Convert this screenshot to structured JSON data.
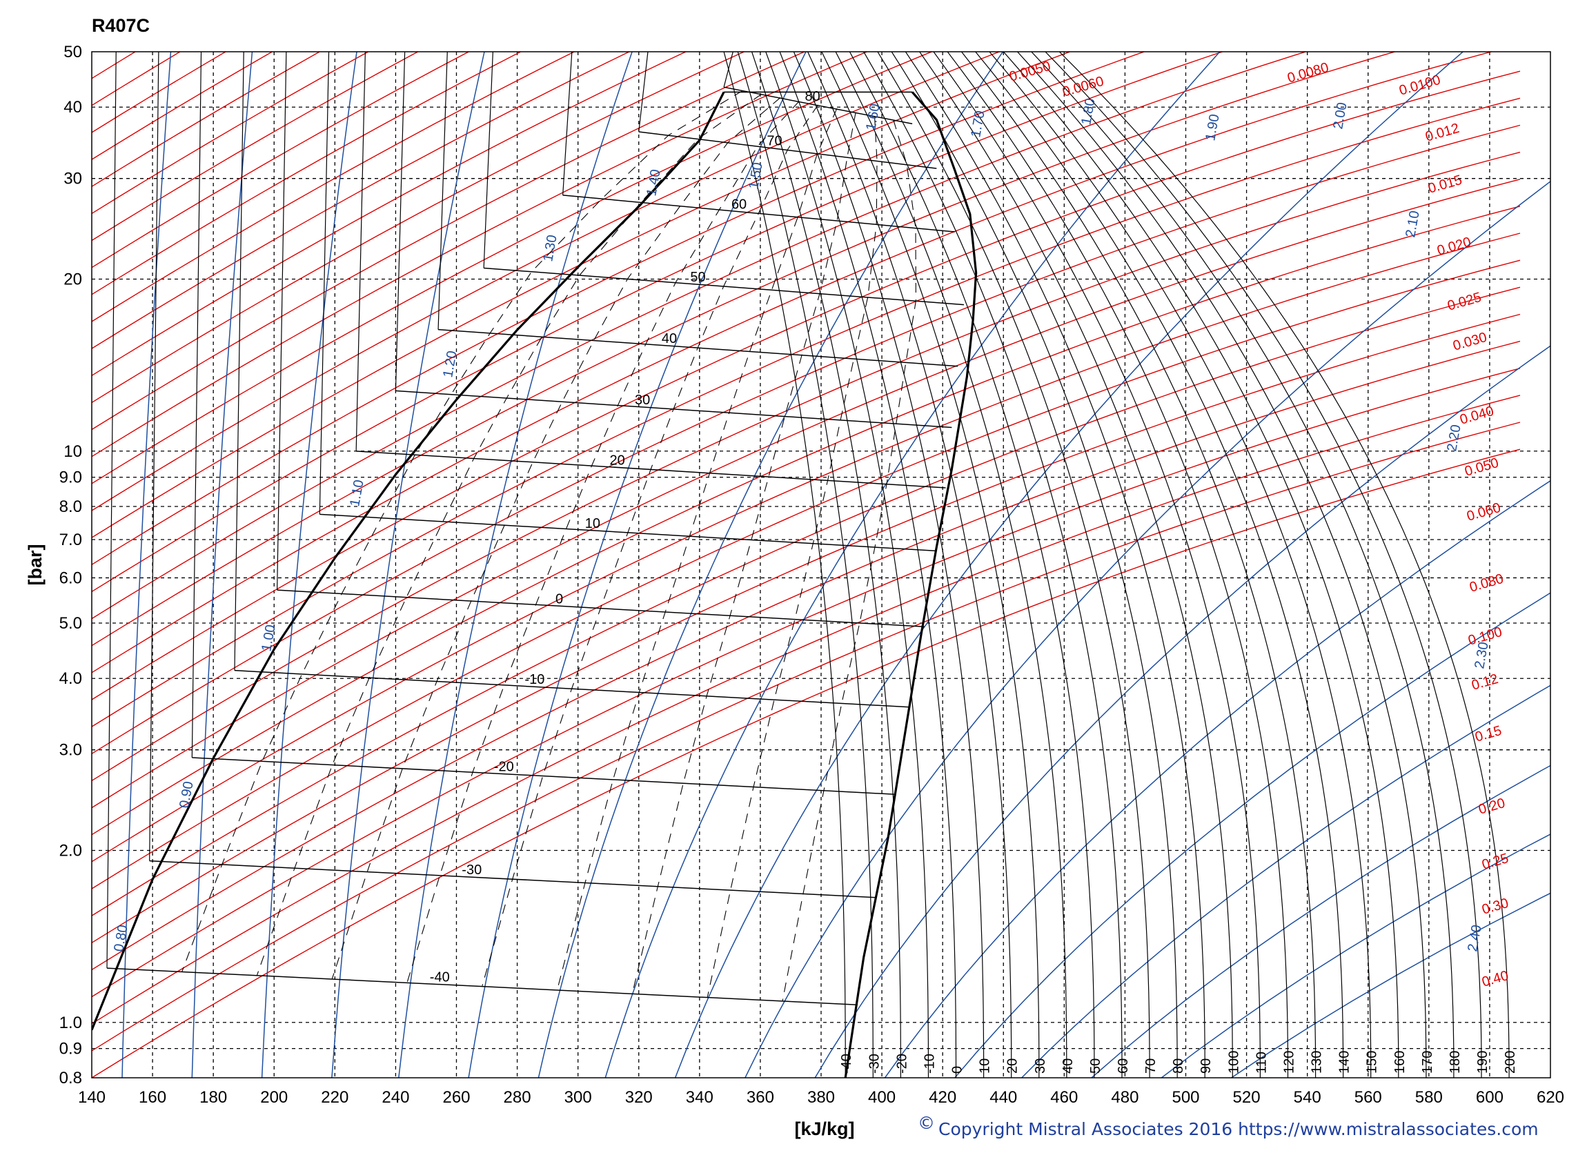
{
  "chart_data": {
    "type": "line",
    "title": "R407C",
    "xlabel": "[kJ/kg]",
    "ylabel": "[bar]",
    "xlim": [
      140,
      620
    ],
    "ylim": [
      0.8,
      50
    ],
    "y_scale": "log",
    "grid": true,
    "x_ticks": [
      140,
      160,
      180,
      200,
      220,
      240,
      260,
      280,
      300,
      320,
      340,
      360,
      380,
      400,
      420,
      440,
      460,
      480,
      500,
      520,
      540,
      560,
      580,
      600,
      620
    ],
    "y_ticks": [
      {
        "value": 0.8,
        "label": "0.8"
      },
      {
        "value": 0.9,
        "label": "0.9"
      },
      {
        "value": 1.0,
        "label": "1.0"
      },
      {
        "value": 2.0,
        "label": "2.0"
      },
      {
        "value": 3.0,
        "label": "3.0"
      },
      {
        "value": 4.0,
        "label": "4.0"
      },
      {
        "value": 5.0,
        "label": "5.0"
      },
      {
        "value": 6.0,
        "label": "6.0"
      },
      {
        "value": 7.0,
        "label": "7.0"
      },
      {
        "value": 8.0,
        "label": "8.0"
      },
      {
        "value": 9.0,
        "label": "9.0"
      },
      {
        "value": 10,
        "label": "10"
      },
      {
        "value": 20,
        "label": "20"
      },
      {
        "value": 30,
        "label": "30"
      },
      {
        "value": 40,
        "label": "40"
      },
      {
        "value": 50,
        "label": "50"
      }
    ],
    "saturation_liquid": [
      [
        140,
        0.97
      ],
      [
        160,
        1.78
      ],
      [
        180,
        2.9
      ],
      [
        200,
        4.5
      ],
      [
        220,
        6.5
      ],
      [
        240,
        9.1
      ],
      [
        260,
        12.3
      ],
      [
        280,
        16.3
      ],
      [
        300,
        21.0
      ],
      [
        320,
        26.8
      ],
      [
        340,
        35.0
      ],
      [
        348,
        42.5
      ]
    ],
    "saturation_vapor": [
      [
        388,
        0.8
      ],
      [
        394,
        1.3
      ],
      [
        402,
        2.1
      ],
      [
        408,
        3.3
      ],
      [
        413,
        4.8
      ],
      [
        418,
        6.8
      ],
      [
        423,
        9.3
      ],
      [
        428,
        13.5
      ],
      [
        430,
        17.0
      ],
      [
        431,
        20.5
      ],
      [
        429,
        26.0
      ],
      [
        424,
        31.0
      ],
      [
        418,
        38.0
      ],
      [
        410,
        42.5
      ]
    ],
    "isotherms_two_phase": [
      {
        "label": "80",
        "p": 42.5,
        "hl": 348,
        "hv": 410
      },
      {
        "label": "70",
        "p": 35.5,
        "hl": 320,
        "hv": 418
      },
      {
        "label": "60",
        "p": 27.5,
        "hl": 295,
        "hv": 424
      },
      {
        "label": "50",
        "p": 20.5,
        "hl": 269,
        "hv": 427
      },
      {
        "label": "40",
        "p": 16.0,
        "hl": 254,
        "hv": 425
      },
      {
        "label": "30",
        "p": 12.5,
        "hl": 240,
        "hv": 423
      },
      {
        "label": "20",
        "p": 9.8,
        "hl": 227,
        "hv": 421
      },
      {
        "label": "10",
        "p": 7.6,
        "hl": 215,
        "hv": 418
      },
      {
        "label": "0",
        "p": 5.6,
        "hl": 201,
        "hv": 414
      },
      {
        "label": "-10",
        "p": 4.05,
        "hl": 187,
        "hv": 409
      },
      {
        "label": "-20",
        "p": 2.85,
        "hl": 173,
        "hv": 404
      },
      {
        "label": "-30",
        "p": 1.88,
        "hl": 159,
        "hv": 398
      },
      {
        "label": "-40",
        "p": 1.22,
        "hl": 145,
        "hv": 392
      }
    ],
    "isotherm_labels_bottom": [
      "-40",
      "-30",
      "-20",
      "-10",
      "0",
      "10",
      "20",
      "30",
      "40",
      "50",
      "60",
      "70",
      "80",
      "90",
      "100",
      "110",
      "120",
      "130",
      "140",
      "150",
      "160",
      "170",
      "180",
      "190",
      "200"
    ],
    "isochore_labels": [
      "0.0050",
      "0.0060",
      "0.0080",
      "0.0100",
      "0.012",
      "0.015",
      "0.020",
      "0.025",
      "0.030",
      "0.040",
      "0.050",
      "0.060",
      "0.080",
      "0.100",
      "0.12",
      "0.15",
      "0.20",
      "0.25",
      "0.30",
      "0.40"
    ],
    "isentrope_labels": [
      "0.80",
      "0.90",
      "1.00",
      "1.10",
      "1.20",
      "1.30",
      "1.40",
      "1.50",
      "1.60",
      "1.70",
      "1.80",
      "1.90",
      "2.00",
      "2.10",
      "2.20",
      "2.30",
      "2.40"
    ],
    "copyright": "Copyright Mistral Associates 2016  https://www.mistralassociates.com",
    "copyright_symbol": "©",
    "colors": {
      "isochore": "#e00000",
      "isentrope": "#1f4f9f",
      "isotherm": "#000000",
      "grid": "#000000"
    }
  }
}
